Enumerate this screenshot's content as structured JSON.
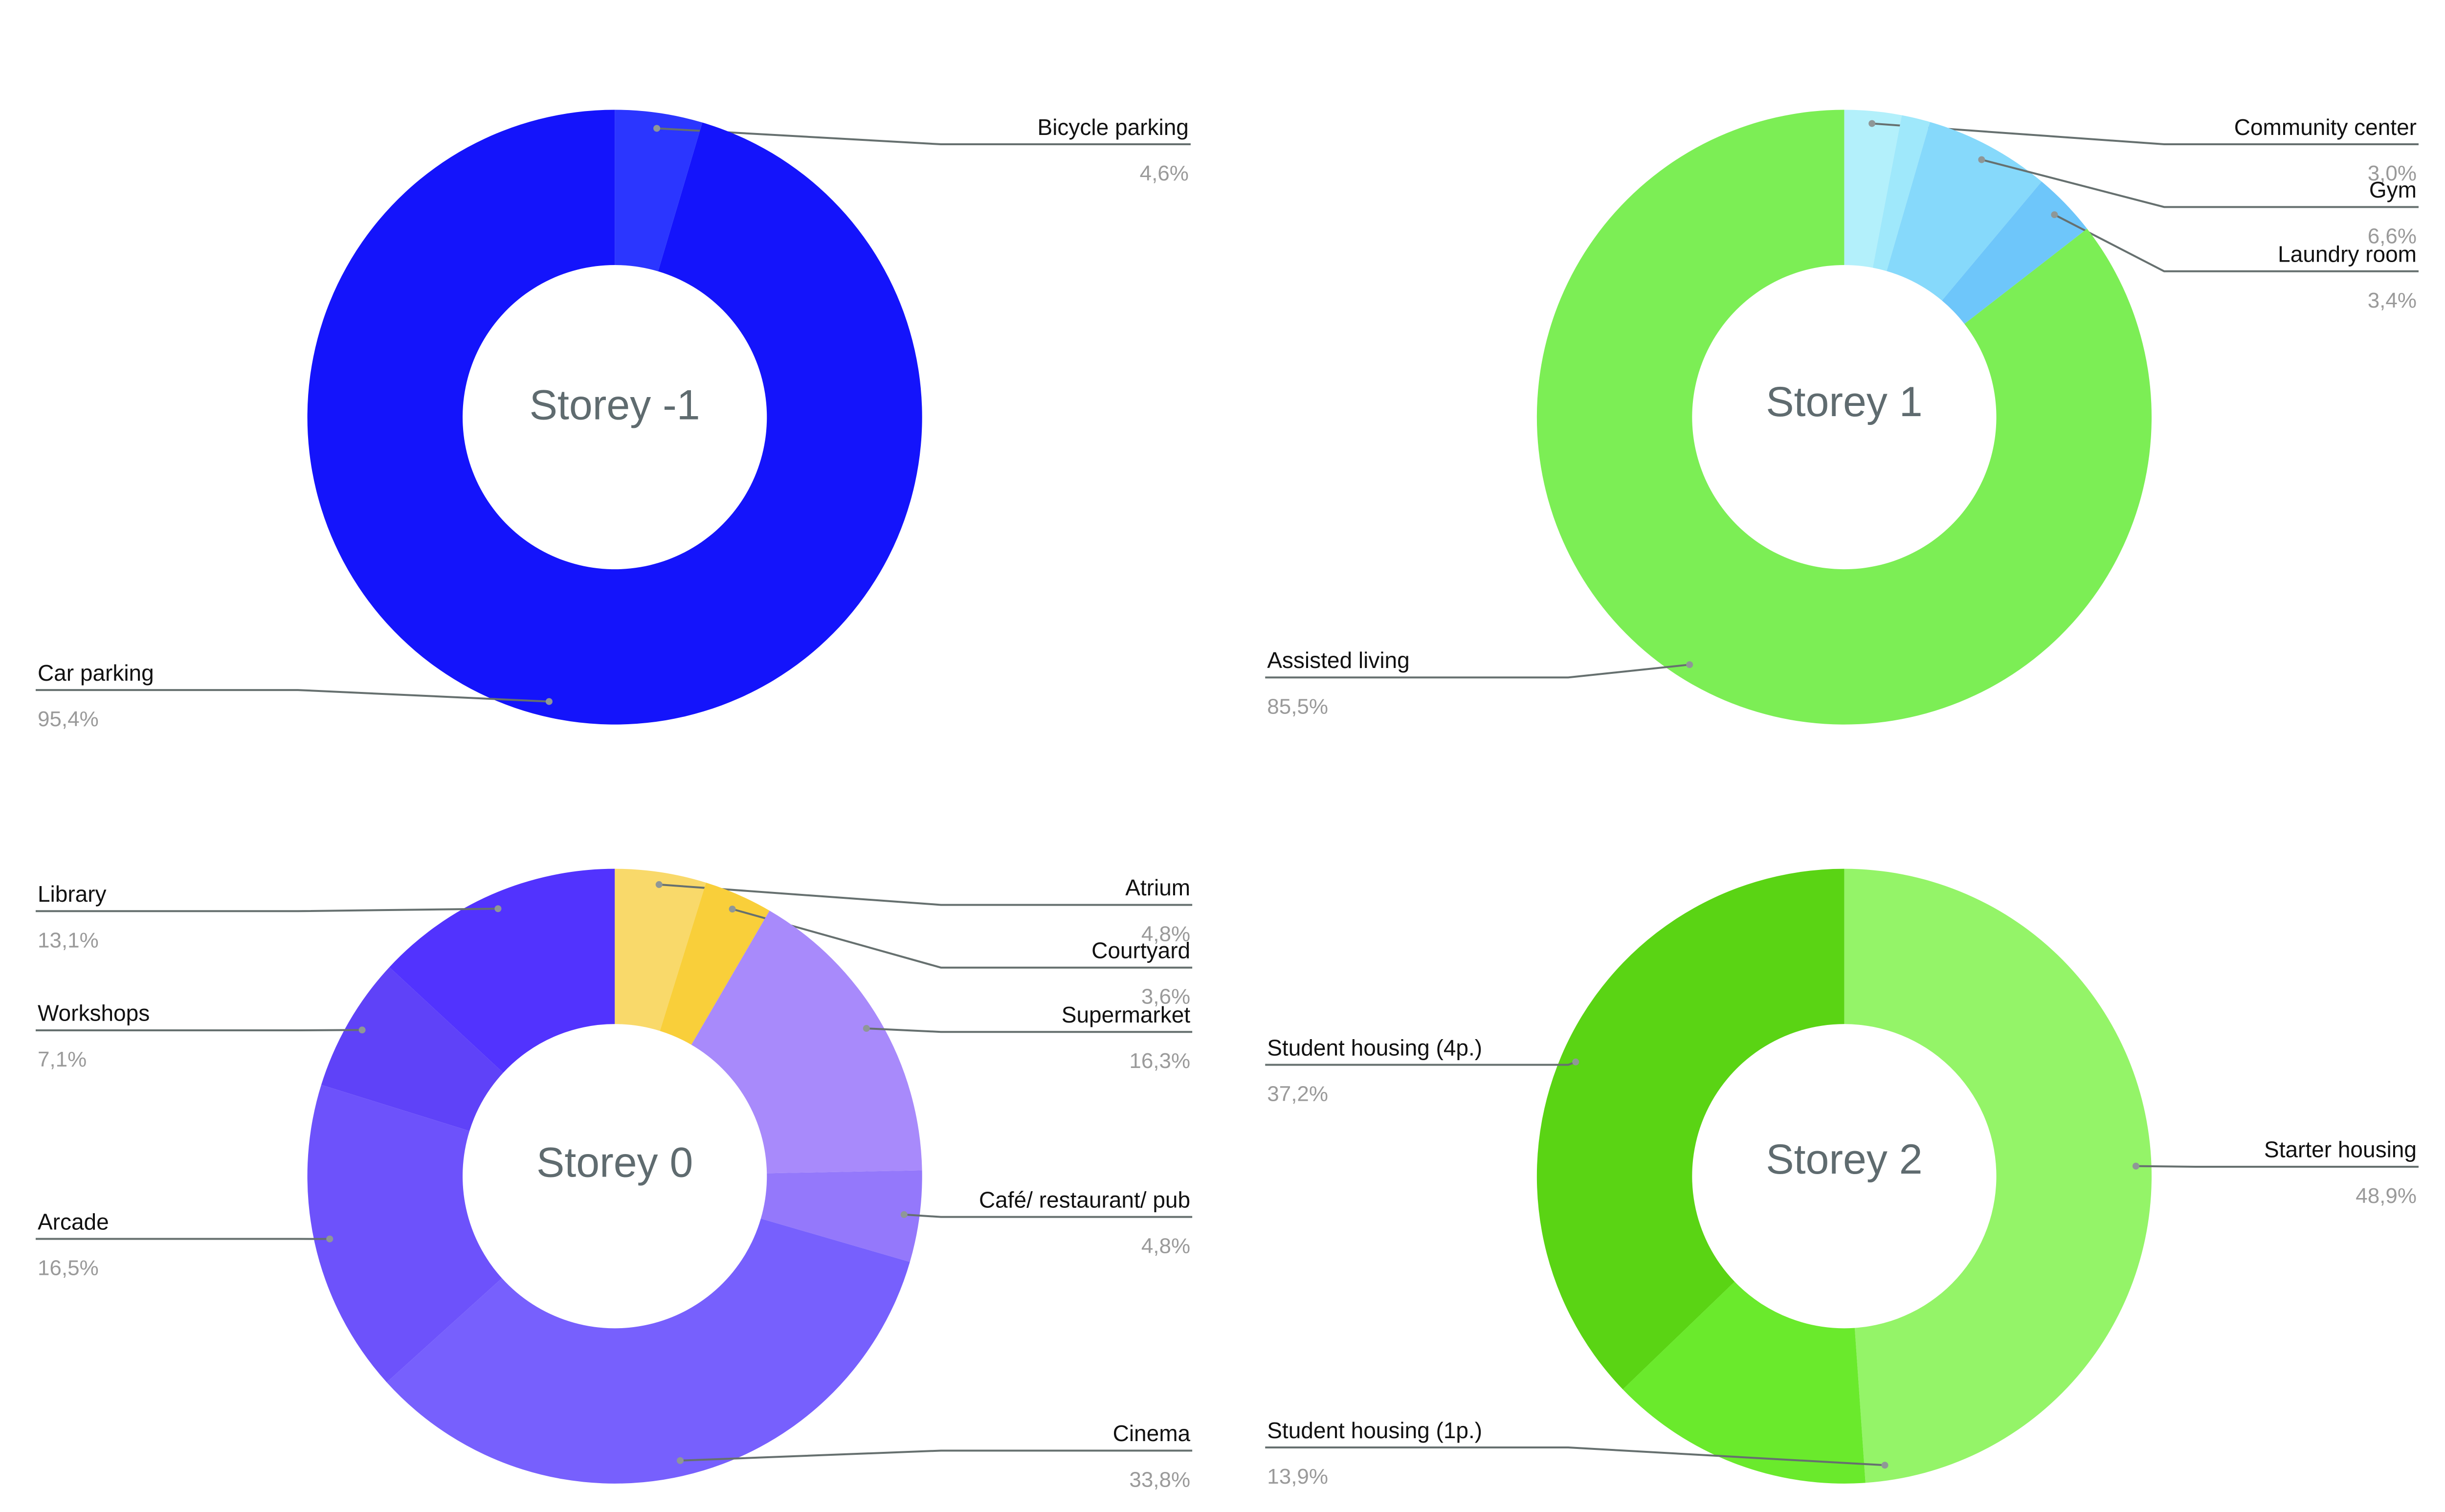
{
  "chart_data": [
    {
      "type": "pie",
      "title": "Storey -1",
      "slices": [
        {
          "label": "Bicycle parking",
          "value": 4.6,
          "value_text": "4,6%",
          "color": "#2b36ff"
        },
        {
          "label": "Car parking",
          "value": 95.4,
          "value_text": "95,4%",
          "color": "#1414fb"
        }
      ]
    },
    {
      "type": "pie",
      "title": "Storey 1",
      "slices": [
        {
          "label": "Community center",
          "value": 3.0,
          "value_text": "3,0%",
          "color": "#b3f0fb"
        },
        {
          "label": "",
          "value": 1.5,
          "value_text": "",
          "color": "#9fe8fb"
        },
        {
          "label": "Gym",
          "value": 6.6,
          "value_text": "6,6%",
          "color": "#86d9fb"
        },
        {
          "label": "Laundry room",
          "value": 3.4,
          "value_text": "3,4%",
          "color": "#6ec6fa"
        },
        {
          "label": "Assisted living",
          "value": 85.5,
          "value_text": "85,5%",
          "color": "#7cee55"
        }
      ]
    },
    {
      "type": "pie",
      "title": "Storey 0",
      "slices": [
        {
          "label": "Atrium",
          "value": 4.8,
          "value_text": "4,8%",
          "color": "#f9d96a"
        },
        {
          "label": "Courtyard",
          "value": 3.6,
          "value_text": "3,6%",
          "color": "#f9cf3a"
        },
        {
          "label": "Supermarket",
          "value": 16.3,
          "value_text": "16,3%",
          "color": "#a88afb"
        },
        {
          "label": "Café/ restaurant/ pub",
          "value": 4.8,
          "value_text": "4,8%",
          "color": "#9478fb"
        },
        {
          "label": "Cinema",
          "value": 33.8,
          "value_text": "33,8%",
          "color": "#7760fd"
        },
        {
          "label": "Arcade",
          "value": 16.5,
          "value_text": "16,5%",
          "color": "#6d52fb"
        },
        {
          "label": "Workshops",
          "value": 7.1,
          "value_text": "7,1%",
          "color": "#5f42f8"
        },
        {
          "label": "Library",
          "value": 13.1,
          "value_text": "13,1%",
          "color": "#5233fe"
        }
      ]
    },
    {
      "type": "pie",
      "title": "Storey 2",
      "slices": [
        {
          "label": "Starter housing",
          "value": 48.9,
          "value_text": "48,9%",
          "color": "#94f468"
        },
        {
          "label": "Student housing (1p.)",
          "value": 13.9,
          "value_text": "13,9%",
          "color": "#6aea2c"
        },
        {
          "label": "Student housing (4p.)",
          "value": 37.2,
          "value_text": "37,2%",
          "color": "#5ad414"
        }
      ]
    }
  ]
}
